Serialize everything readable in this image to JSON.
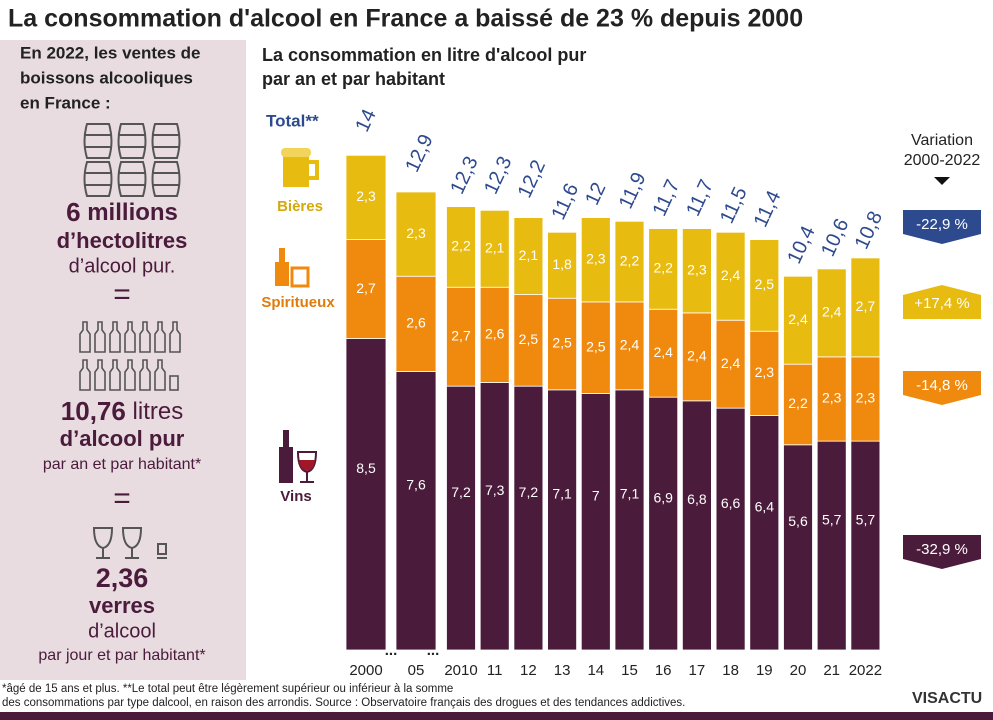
{
  "title": "La consommation d'alcool en France a baissé de 23 % depuis 2000",
  "left_panel": {
    "intro": [
      "En 2022, les ventes de",
      "boissons alcooliques",
      "en France :"
    ],
    "equals": "=",
    "block1": {
      "number": "6",
      "unit": "millions",
      "line2": "d’hectolitres",
      "line3": "d’alcool pur."
    },
    "block2": {
      "number": "10,76",
      "unit": "litres",
      "line2": "d’alcool pur",
      "line3": "par an et par habitant*"
    },
    "block3": {
      "number": "2,36",
      "line1": "verres",
      "line2": "d’alcool",
      "line3": "par jour et par habitant*"
    }
  },
  "chart_data": {
    "type": "bar",
    "stacked": true,
    "subtitle": [
      "La consommation en litre d'alcool pur",
      "par an et par habitant"
    ],
    "categories": [
      "2000",
      "05",
      "2010",
      "11",
      "12",
      "13",
      "14",
      "15",
      "16",
      "17",
      "18",
      "19",
      "20",
      "21",
      "2022"
    ],
    "gap_marker": "...",
    "series": [
      {
        "name": "Vins",
        "color": "#4b1b3b",
        "variation": "-32,9 %",
        "values": [
          8.5,
          7.6,
          7.2,
          7.3,
          7.2,
          7.1,
          7,
          7.1,
          6.9,
          6.8,
          6.6,
          6.4,
          5.6,
          5.7,
          5.7
        ],
        "value_labels": [
          "8,5",
          "7,6",
          "7,2",
          "7,3",
          "7,2",
          "7,1",
          "7",
          "7,1",
          "6,9",
          "6,8",
          "6,6",
          "6,4",
          "5,6",
          "5,7",
          "5,7"
        ]
      },
      {
        "name": "Spiritueux",
        "color": "#f08a0e",
        "variation": "-14,8 %",
        "values": [
          2.7,
          2.6,
          2.7,
          2.6,
          2.5,
          2.5,
          2.5,
          2.4,
          2.4,
          2.4,
          2.4,
          2.3,
          2.2,
          2.3,
          2.3
        ],
        "value_labels": [
          "2,7",
          "2,6",
          "2,7",
          "2,6",
          "2,5",
          "2,5",
          "2,5",
          "2,4",
          "2,4",
          "2,4",
          "2,4",
          "2,3",
          "2,2",
          "2,3",
          "2,3"
        ]
      },
      {
        "name": "Bières",
        "color": "#e8bb10",
        "variation": "+17,4 %",
        "values": [
          2.3,
          2.3,
          2.2,
          2.1,
          2.1,
          1.8,
          2.3,
          2.2,
          2.2,
          2.3,
          2.4,
          2.5,
          2.4,
          2.4,
          2.7
        ],
        "value_labels": [
          "2,3",
          "2,3",
          "2,2",
          "2,1",
          "2,1",
          "1,8",
          "2,3",
          "2,2",
          "2,2",
          "2,3",
          "2,4",
          "2,5",
          "2,4",
          "2,4",
          "2,7"
        ]
      }
    ],
    "totals": {
      "name": "Total**",
      "color": "#2e4a8f",
      "variation": "-22,9 %",
      "values": [
        14,
        12.9,
        12.3,
        12.3,
        12.2,
        11.6,
        12,
        11.9,
        11.7,
        11.7,
        11.5,
        11.4,
        10.4,
        10.6,
        10.8
      ],
      "value_labels": [
        "14",
        "12,9",
        "12,3",
        "12,3",
        "12,2",
        "11,6",
        "12",
        "11,9",
        "11,7",
        "11,7",
        "11,5",
        "11,4",
        "10,4",
        "10,6",
        "10,8"
      ]
    },
    "variation_title": [
      "Variation",
      "2000-2022"
    ]
  },
  "footnote": [
    "*âgé de 15 ans et plus. **Le total peut être légèrement supérieur ou inférieur à la somme",
    "des consommations par type dalcool, en raison des arrondis. Source : Observatoire français des drogues et des tendances addictives."
  ],
  "logo": "VISACTU"
}
